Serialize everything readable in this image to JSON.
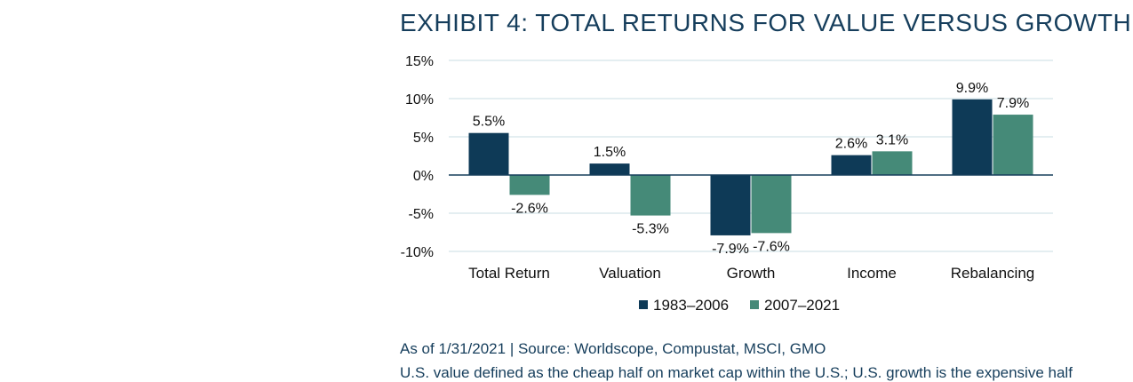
{
  "title": "EXHIBIT 4: TOTAL RETURNS FOR VALUE VERSUS GROWTH",
  "source": "As of 1/31/2021 | Source: Worldscope, Compustat, MSCI, GMO",
  "footnote": "U.S. value defined as the cheap half on market cap within the U.S.; U.S. growth is the expensive half",
  "colors": {
    "series1": "#0E3A57",
    "series2": "#458A78",
    "grid": "#C9DCE3",
    "zero": "#163E5C"
  },
  "chart_data": {
    "type": "bar",
    "categories": [
      "Total Return",
      "Valuation",
      "Growth",
      "Income",
      "Rebalancing"
    ],
    "series": [
      {
        "name": "1983–2006",
        "values": [
          5.5,
          1.5,
          -7.9,
          2.6,
          9.9
        ],
        "labels": [
          "5.5%",
          "1.5%",
          "-7.9%",
          "2.6%",
          "9.9%"
        ]
      },
      {
        "name": "2007–2021",
        "values": [
          -2.6,
          -5.3,
          -7.6,
          3.1,
          7.9
        ],
        "labels": [
          "-2.6%",
          "-5.3%",
          "-7.6%",
          "3.1%",
          "7.9%"
        ]
      }
    ],
    "ylim": [
      -10,
      15
    ],
    "yticks": [
      15,
      10,
      5,
      0,
      -5,
      -10
    ],
    "ytick_labels": [
      "15%",
      "10%",
      "5%",
      "0%",
      "-5%",
      "-10%"
    ],
    "grid": true,
    "legend": "bottom"
  }
}
